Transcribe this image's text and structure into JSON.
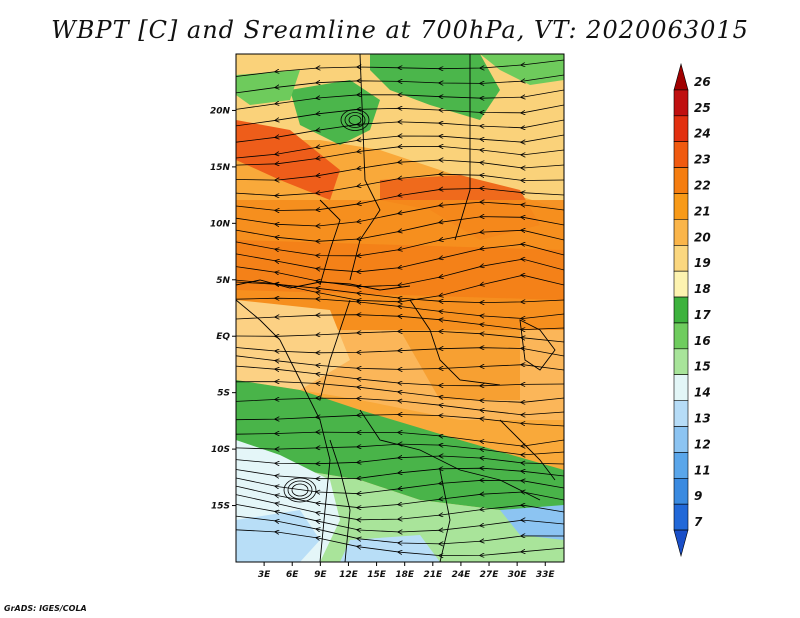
{
  "title": "WBPT [C] and Sreamline at 700hPa, VT: 2020063015",
  "footer": "GrADS: IGES/COLA",
  "map": {
    "lon_range": [
      0,
      35
    ],
    "lat_range": [
      -20,
      25
    ],
    "lon_ticks": [
      3,
      6,
      9,
      12,
      15,
      18,
      21,
      24,
      27,
      30,
      33
    ],
    "lon_labels": [
      "3E",
      "6E",
      "9E",
      "12E",
      "15E",
      "18E",
      "21E",
      "24E",
      "27E",
      "30E",
      "33E"
    ],
    "lat_ticks": [
      20,
      15,
      10,
      5,
      0,
      -5,
      -10,
      -15
    ],
    "lat_labels": [
      "20N",
      "15N",
      "10N",
      "5N",
      "EQ",
      "5S",
      "10S",
      "15S"
    ]
  },
  "colorbar": {
    "levels": [
      "26",
      "25",
      "24",
      "23",
      "22",
      "21",
      "20",
      "19",
      "18",
      "17",
      "16",
      "15",
      "14",
      "13",
      "12",
      "11",
      "9",
      "7"
    ],
    "colors": [
      "#a00000",
      "#c01010",
      "#e23010",
      "#f05a10",
      "#f57d10",
      "#f89a18",
      "#fab54a",
      "#fbd77f",
      "#fdf3b0",
      "#3db23d",
      "#6fcc5e",
      "#a8e49a",
      "#e3f6f7",
      "#b6dcf7",
      "#8cc4f2",
      "#5aa6ea",
      "#3a8ae0",
      "#2168d8",
      "#1a4fc8"
    ]
  }
}
